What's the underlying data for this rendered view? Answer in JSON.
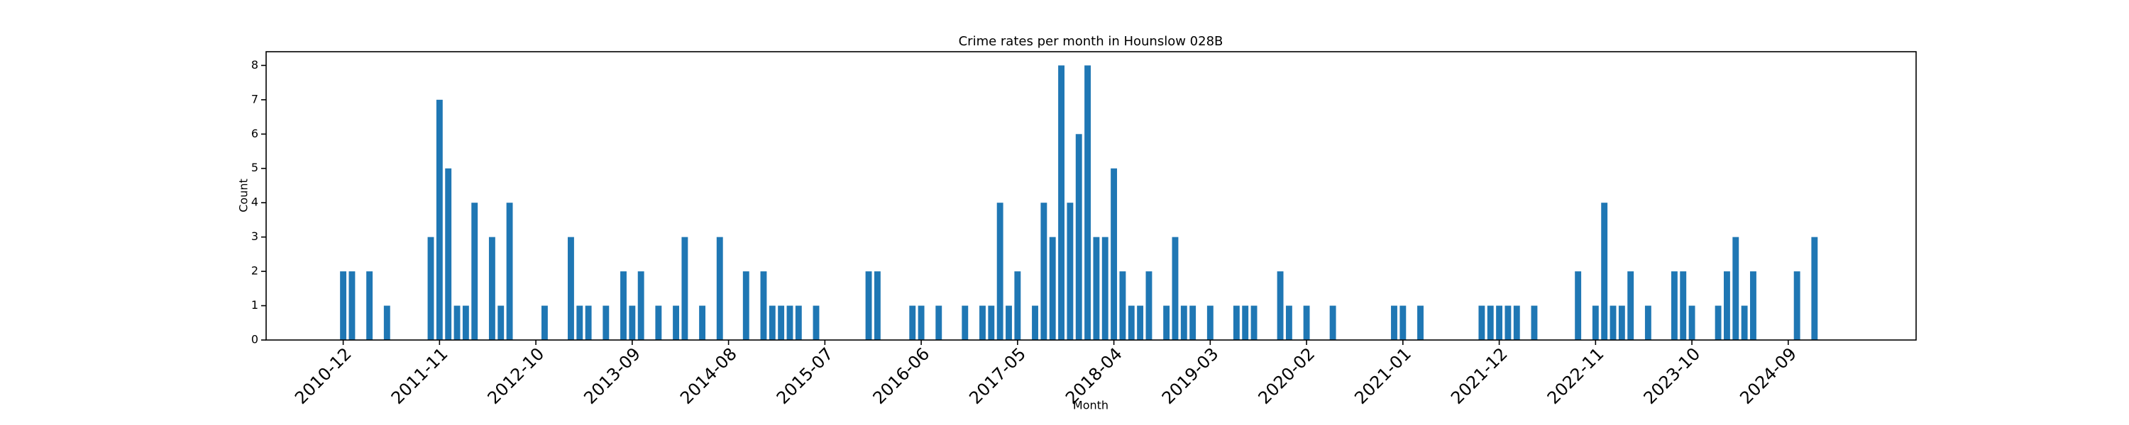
{
  "chart_data": {
    "type": "bar",
    "title": "Crime rates per month in Hounslow 028B",
    "xlabel": "Month",
    "ylabel": "Count",
    "color": "#1f77b4",
    "ylim": [
      0,
      8.4
    ],
    "yticks": [
      0,
      1,
      2,
      3,
      4,
      5,
      6,
      7,
      8
    ],
    "categories": [
      "2010-12",
      null,
      null,
      null,
      null,
      null,
      null,
      null,
      null,
      null,
      null,
      "2011-11",
      null,
      null,
      null,
      null,
      null,
      null,
      null,
      null,
      null,
      null,
      "2012-10",
      null,
      null,
      null,
      null,
      null,
      null,
      null,
      null,
      null,
      null,
      "2013-09",
      null,
      null,
      null,
      null,
      null,
      null,
      null,
      null,
      null,
      null,
      "2014-08",
      null,
      null,
      null,
      null,
      null,
      null,
      null,
      null,
      null,
      null,
      "2015-07",
      null,
      null,
      null,
      null,
      null,
      null,
      null,
      null,
      null,
      null,
      "2016-06",
      null,
      null,
      null,
      null,
      null,
      null,
      null,
      null,
      null,
      null,
      "2017-05",
      null,
      null,
      null,
      null,
      null,
      null,
      null,
      null,
      null,
      null,
      "2018-04",
      null,
      null,
      null,
      null,
      null,
      null,
      null,
      null,
      null,
      null,
      "2019-03",
      null,
      null,
      null,
      null,
      null,
      null,
      null,
      null,
      null,
      null,
      "2020-02",
      null,
      null,
      null,
      null,
      null,
      null,
      null,
      null,
      null,
      null,
      "2021-01",
      null,
      null,
      null,
      null,
      null,
      null,
      null,
      null,
      null,
      null,
      "2021-12",
      null,
      null,
      null,
      null,
      null,
      null,
      null,
      null,
      null,
      null,
      "2022-11",
      null,
      null,
      null,
      null,
      null,
      null,
      null,
      null,
      null,
      null,
      "2023-10",
      null,
      null,
      null,
      null,
      null,
      null,
      null,
      null,
      null,
      null,
      "2024-09",
      null,
      null,
      null
    ],
    "values": [
      2,
      2,
      0,
      2,
      0,
      1,
      0,
      0,
      0,
      0,
      3,
      7,
      5,
      1,
      1,
      4,
      0,
      3,
      1,
      4,
      0,
      0,
      0,
      1,
      0,
      0,
      3,
      1,
      1,
      0,
      1,
      0,
      2,
      1,
      2,
      0,
      1,
      0,
      1,
      3,
      0,
      1,
      0,
      3,
      0,
      0,
      2,
      0,
      2,
      1,
      1,
      1,
      1,
      0,
      1,
      0,
      0,
      0,
      0,
      0,
      2,
      2,
      0,
      0,
      0,
      1,
      1,
      0,
      1,
      0,
      0,
      1,
      0,
      1,
      1,
      4,
      1,
      2,
      0,
      1,
      4,
      3,
      8,
      4,
      6,
      8,
      3,
      3,
      5,
      2,
      1,
      1,
      2,
      0,
      1,
      3,
      1,
      1,
      0,
      1,
      0,
      0,
      1,
      1,
      1,
      0,
      0,
      2,
      1,
      0,
      1,
      0,
      0,
      1,
      0,
      0,
      0,
      0,
      0,
      0,
      1,
      1,
      0,
      1,
      0,
      0,
      0,
      0,
      0,
      0,
      1,
      1,
      1,
      1,
      1,
      0,
      1,
      0,
      0,
      0,
      0,
      2,
      0,
      1,
      4,
      1,
      1,
      2,
      0,
      1,
      0,
      0,
      2,
      2,
      1,
      0,
      0,
      1,
      2,
      3,
      1,
      2,
      0,
      0,
      0,
      0,
      2,
      0,
      3
    ]
  }
}
